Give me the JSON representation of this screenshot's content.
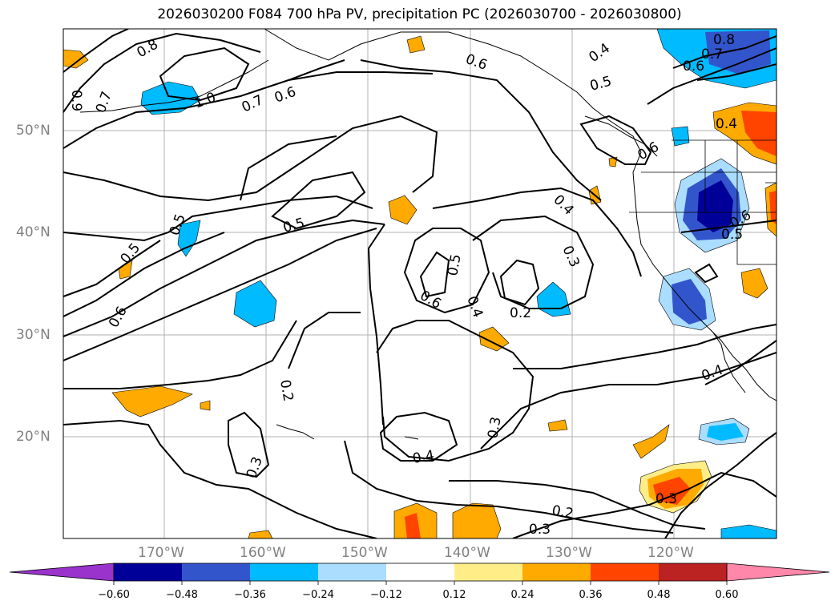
{
  "title": "2026030200 F084 700 hPa PV, precipitation PC (2026030700 - 2026030800)",
  "lat_labels": [
    "50°N",
    "40°N",
    "30°N",
    "20°N"
  ],
  "lon_labels": [
    "170°W",
    "160°W",
    "150°W",
    "140°W",
    "130°W",
    "120°W"
  ],
  "contour_labels": [
    "0.8",
    "0.9",
    "0.7",
    "1.0",
    "0.7",
    "0.6",
    "0.6",
    "0.4",
    "0.5",
    "0.8",
    "0.7",
    "0.6",
    "0.4",
    "0.6",
    "0.4",
    "0.5",
    "0.5",
    "0.5",
    "0.6",
    "0.5",
    "0.3",
    "0.5",
    "0.4",
    "0.6",
    "0.2",
    "0.6",
    "0.2",
    "0.3",
    "0.4",
    "0.3",
    "0.3",
    "0.2",
    "0.3",
    "0.4"
  ],
  "colorbar": {
    "ticks": [
      "−0.60",
      "−0.48",
      "−0.36",
      "−0.24",
      "−0.12",
      "0.12",
      "0.24",
      "0.36",
      "0.48",
      "0.60"
    ],
    "colors": [
      "#9933cc",
      "#000099",
      "#3355cc",
      "#00bbff",
      "#aaddff",
      "#ffffff",
      "#ffee88",
      "#ffaa00",
      "#ff4400",
      "#bb2222",
      "#ff88aa"
    ]
  },
  "fill_colors": {
    "neg_light": "#aaddff",
    "neg_mid": "#00bbff",
    "neg_dark": "#3355cc",
    "neg_darkest": "#000099",
    "pos_light": "#ffee88",
    "pos_mid": "#ffaa00",
    "pos_dark": "#ff4400",
    "pos_darkest": "#bb2222"
  }
}
